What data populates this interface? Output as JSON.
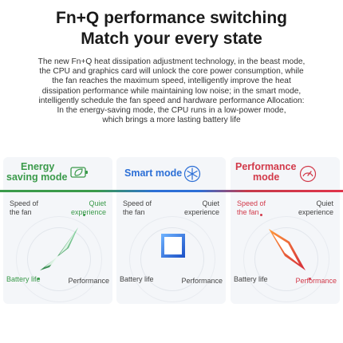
{
  "heading": {
    "line1": "Fn+Q performance switching",
    "line2": "Match your every state"
  },
  "description": [
    "The new Fn+Q heat dissipation adjustment technology, in the beast mode,",
    "the CPU and graphics card will unlock the core power consumption, while",
    "the fan reaches the maximum speed, intelligently improve the heat",
    "dissipation performance while maintaining low noise; in the smart mode,",
    "intelligently schedule the fan speed and hardware performance Allocation:",
    "In the energy-saving mode, the CPU runs in a low-power mode,",
    "which brings a more lasting battery life"
  ],
  "colors": {
    "eco": "#3a9a4a",
    "smart": "#2c6fd6",
    "perf": "#d23a4a"
  },
  "modes": [
    {
      "title_line1": "Energy",
      "title_line2": "saving mode",
      "icon": "battery-leaf-icon",
      "speed_of_fan": "Speed of the fan",
      "quiet": "Quiet experience",
      "battery": "Battery life",
      "performance": "Performance"
    },
    {
      "title_line1": "Smart mode",
      "title_line2": "",
      "icon": "snowflake-icon",
      "speed_of_fan": "Speed of the fan",
      "quiet": "Quiet experience",
      "battery": "Battery life",
      "performance": "Performance"
    },
    {
      "title_line1": "Performance",
      "title_line2": "mode",
      "icon": "speedometer-icon",
      "speed_of_fan": "Speed of the fan",
      "quiet": "Quiet experience",
      "battery": "Battery life",
      "performance": "Performance"
    }
  ]
}
